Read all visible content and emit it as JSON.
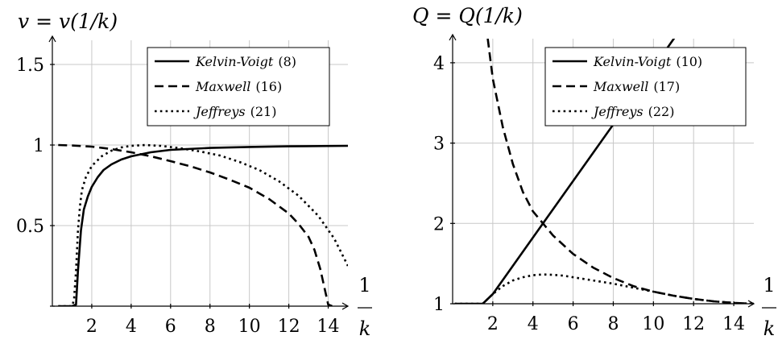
{
  "chart_data": [
    {
      "type": "line",
      "title": "v = v(1/k)",
      "xlabel": "1/k",
      "xlabel_num": "1",
      "xlabel_den": "k",
      "xlim": [
        0,
        15
      ],
      "ylim": [
        0,
        1.65
      ],
      "x_ticks": [
        2,
        4,
        6,
        8,
        10,
        12,
        14
      ],
      "x_tick_labels": [
        "2",
        "4",
        "6",
        "8",
        "10",
        "12",
        "14"
      ],
      "y_ticks": [
        0.5,
        1,
        1.5
      ],
      "y_tick_labels": [
        "0.5",
        "1",
        "1.5"
      ],
      "grid": true,
      "legend_position": "top-right",
      "series": [
        {
          "name": "Kelvin-Voigt",
          "ref": "(8)",
          "style": "solid",
          "x": [
            0.3,
            1.0,
            1.2,
            1.3,
            1.45,
            1.6,
            1.8,
            2.0,
            2.3,
            2.6,
            3.0,
            3.5,
            4.0,
            5.0,
            6.0,
            8.0,
            10.0,
            12.0,
            15.0
          ],
          "y": [
            0,
            0,
            0.01,
            0.22,
            0.47,
            0.6,
            0.68,
            0.74,
            0.8,
            0.845,
            0.88,
            0.91,
            0.93,
            0.955,
            0.97,
            0.982,
            0.988,
            0.992,
            0.995
          ]
        },
        {
          "name": "Maxwell",
          "ref": "(16)",
          "style": "dashed",
          "x": [
            0.3,
            1,
            2,
            3,
            4,
            5,
            6,
            7,
            8,
            9,
            10,
            11,
            12,
            12.5,
            13,
            13.3,
            13.6,
            13.8,
            14.0,
            14.2
          ],
          "y": [
            1.0,
            0.997,
            0.99,
            0.975,
            0.955,
            0.93,
            0.9,
            0.868,
            0.83,
            0.785,
            0.735,
            0.665,
            0.575,
            0.51,
            0.43,
            0.35,
            0.23,
            0.12,
            0.01,
            0.0
          ]
        },
        {
          "name": "Jeffreys",
          "ref": "(21)",
          "style": "dotted",
          "x": [
            0.3,
            1.0,
            1.1,
            1.2,
            1.3,
            1.4,
            1.5,
            1.7,
            2.0,
            2.5,
            3.0,
            3.5,
            4.0,
            4.7,
            5.5,
            6.5,
            7.5,
            8.5,
            9.5,
            10.5,
            11.5,
            12.5,
            13.5,
            14.3,
            15.0
          ],
          "y": [
            0,
            0,
            0.04,
            0.22,
            0.47,
            0.62,
            0.72,
            0.8,
            0.87,
            0.93,
            0.965,
            0.985,
            0.995,
            1.0,
            0.995,
            0.98,
            0.96,
            0.935,
            0.895,
            0.845,
            0.775,
            0.685,
            0.56,
            0.42,
            0.25
          ]
        }
      ]
    },
    {
      "type": "line",
      "title": "Q = Q(1/k)",
      "xlabel": "1/k",
      "xlabel_num": "1",
      "xlabel_den": "k",
      "xlim": [
        0,
        15
      ],
      "ylim": [
        1,
        4.3
      ],
      "x_ticks": [
        2,
        4,
        6,
        8,
        10,
        12,
        14
      ],
      "x_tick_labels": [
        "2",
        "4",
        "6",
        "8",
        "10",
        "12",
        "14"
      ],
      "y_ticks": [
        1,
        2,
        3,
        4
      ],
      "y_tick_labels": [
        "1",
        "2",
        "3",
        "4"
      ],
      "grid": true,
      "legend_position": "top-right",
      "series": [
        {
          "name": "Kelvin-Voigt",
          "ref": "(10)",
          "style": "solid",
          "x": [
            0.1,
            1.5,
            2.0,
            4.5,
            7.0,
            9.5,
            11.3
          ],
          "y": [
            1.0,
            1.0,
            1.12,
            2.0,
            2.88,
            3.76,
            4.4
          ]
        },
        {
          "name": "Maxwell",
          "ref": "(17)",
          "style": "dashed",
          "x": [
            1.75,
            2.0,
            2.5,
            3.0,
            3.5,
            4.0,
            4.5,
            5.0,
            6.0,
            7.0,
            8.0,
            9.0,
            10.0,
            11.0,
            12.0,
            13.0,
            14.0,
            15.0
          ],
          "y": [
            4.3,
            3.8,
            3.2,
            2.74,
            2.39,
            2.15,
            2.0,
            1.85,
            1.62,
            1.45,
            1.32,
            1.22,
            1.15,
            1.1,
            1.06,
            1.03,
            1.01,
            1.0
          ]
        },
        {
          "name": "Jeffreys",
          "ref": "(22)",
          "style": "dotted",
          "x": [
            0.1,
            1.5,
            2.0,
            2.5,
            3.0,
            3.5,
            4.0,
            4.5,
            5.0,
            5.5,
            6.0,
            7.0,
            8.0,
            9.0,
            10.0,
            11.0,
            12.0,
            13.0,
            14.0,
            15.0
          ],
          "y": [
            1.0,
            1.0,
            1.12,
            1.22,
            1.29,
            1.33,
            1.355,
            1.365,
            1.36,
            1.35,
            1.33,
            1.29,
            1.25,
            1.2,
            1.15,
            1.1,
            1.06,
            1.03,
            1.01,
            1.0
          ]
        }
      ]
    }
  ]
}
